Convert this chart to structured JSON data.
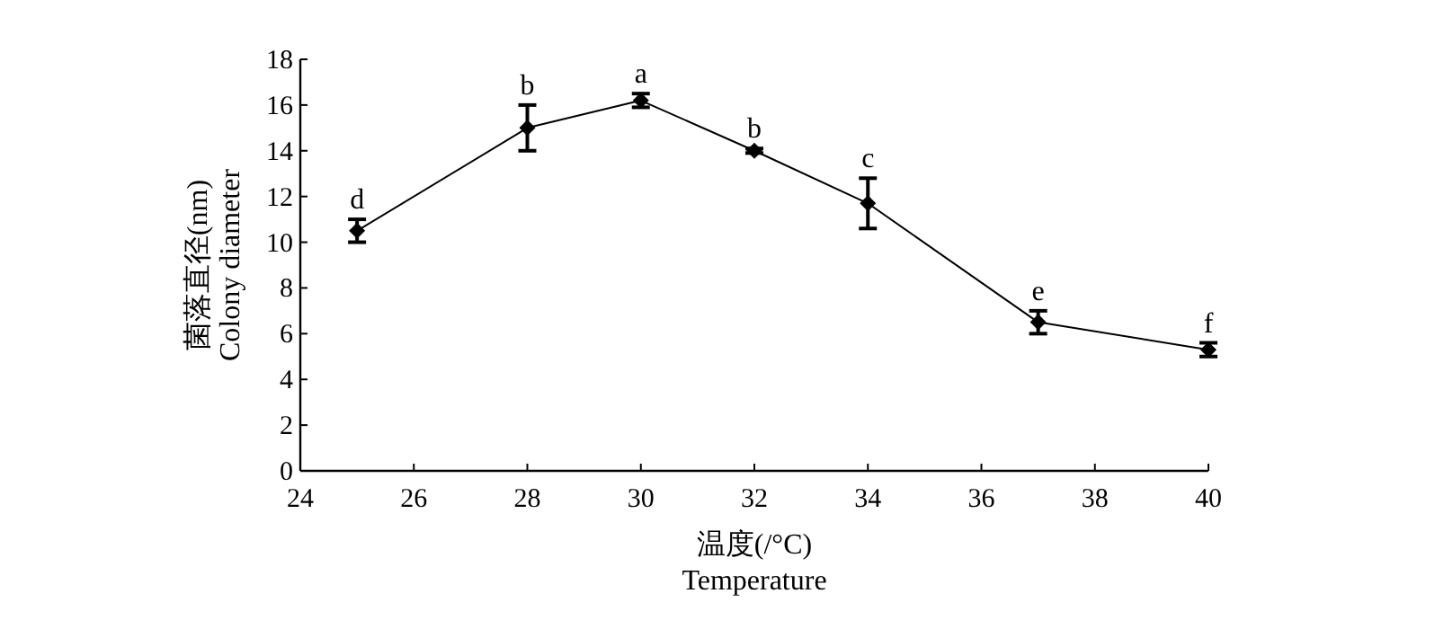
{
  "chart_data": {
    "type": "line",
    "xlabel": "温度(/°C)\nTemperature",
    "ylabel": "菌落直径(nm)\nColony diameter",
    "x": [
      25,
      28,
      30,
      32,
      34,
      37,
      40
    ],
    "series": [
      {
        "color": "#000000",
        "values": [
          10.5,
          15,
          16.2,
          14,
          11.7,
          6.5,
          5.3
        ],
        "errors": [
          0.5,
          1,
          0.3,
          0.1,
          1.1,
          0.5,
          0.3
        ]
      }
    ],
    "xlim": [
      24,
      40
    ],
    "xticks": [
      24,
      26,
      28,
      30,
      32,
      34,
      36,
      38,
      40
    ],
    "ylim": [
      0,
      18
    ],
    "yticks": [
      0,
      2,
      4,
      6,
      8,
      10,
      12,
      14,
      16,
      18
    ],
    "marker": "diamond",
    "line_style": "solid",
    "grid": false,
    "annotations": [
      {
        "text": "d",
        "x": 25,
        "y": 11
      },
      {
        "text": "b",
        "x": 28,
        "y": 16
      },
      {
        "text": "a",
        "x": 30,
        "y": 16.5
      },
      {
        "text": "b",
        "x": 32,
        "y": 14.1
      },
      {
        "text": "c",
        "x": 34,
        "y": 12.8
      },
      {
        "text": "e",
        "x": 37,
        "y": 7
      },
      {
        "text": "f",
        "x": 40,
        "y": 5.6
      }
    ]
  }
}
